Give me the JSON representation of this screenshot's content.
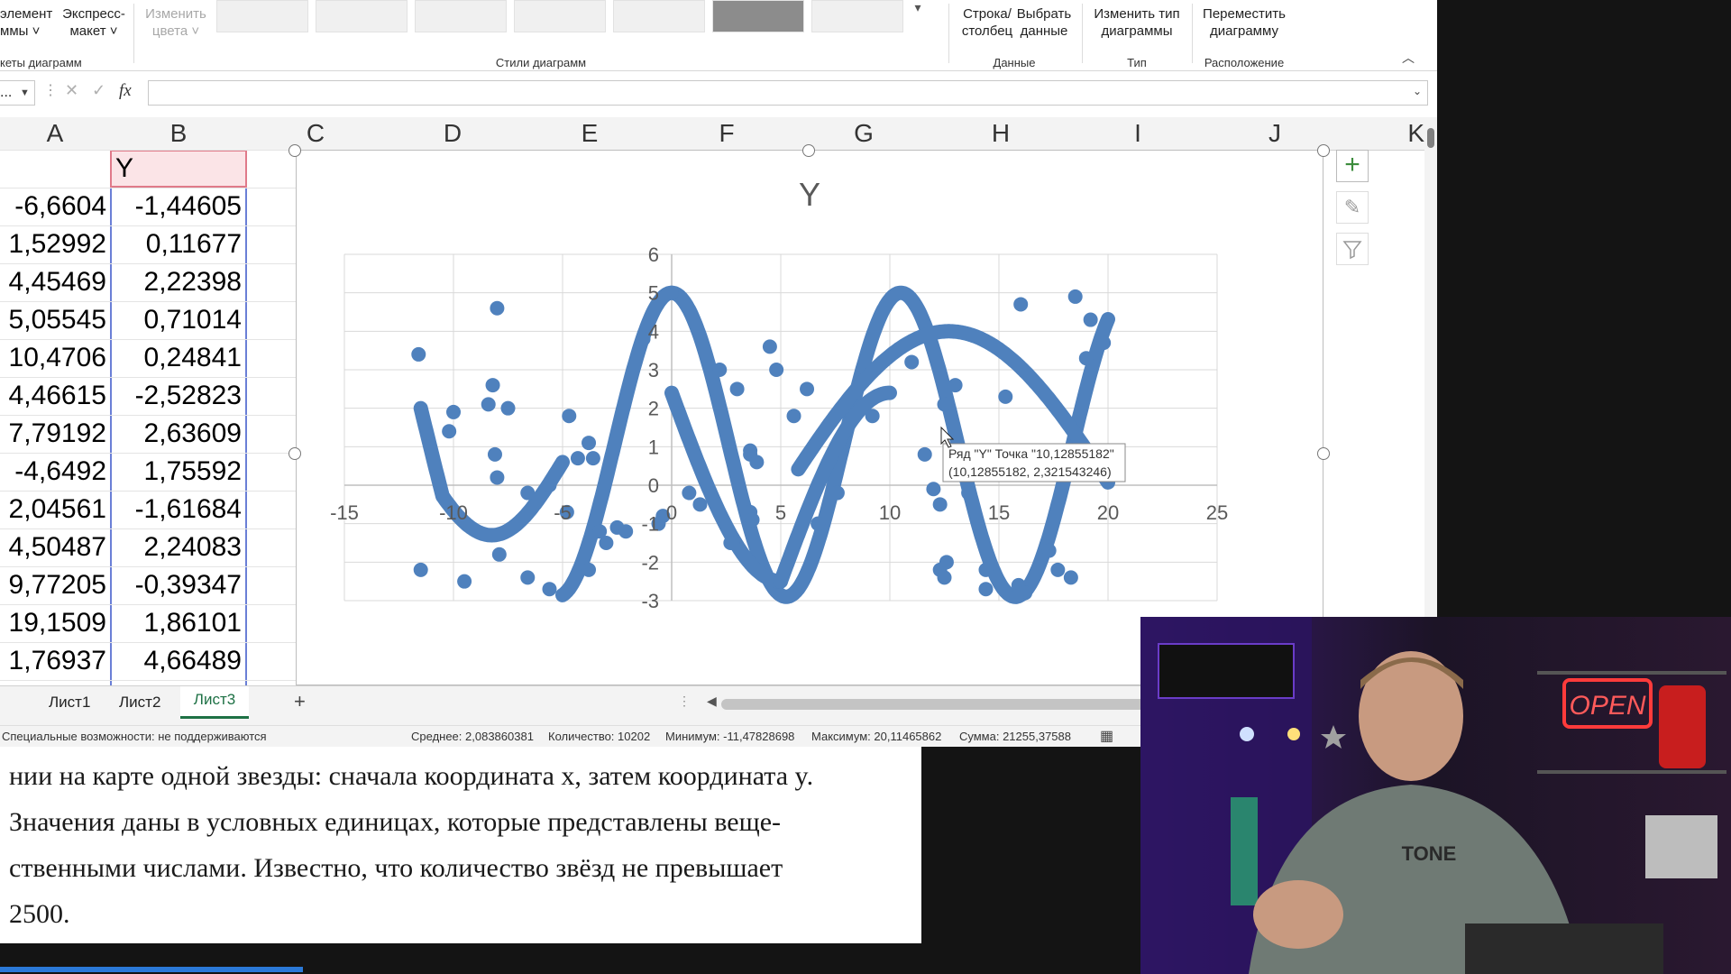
{
  "ribbon": {
    "element_label_1": "элемент",
    "element_label_2": "ммы ˅",
    "express_label_1": "Экспресс-",
    "express_label_2": "макет ˅",
    "change_colors_1": "Изменить",
    "change_colors_2": "цвета ˅",
    "row_col_1": "Строка/",
    "row_col_2": "столбец",
    "select_data_1": "Выбрать",
    "select_data_2": "данные",
    "change_type_1": "Изменить тип",
    "change_type_2": "диаграммы",
    "move_chart_1": "Переместить",
    "move_chart_2": "диаграмму",
    "group_layouts": "кеты диаграмм",
    "group_styles": "Стили диаграмм",
    "group_data": "Данные",
    "group_type": "Тип",
    "group_location": "Расположение"
  },
  "formula_bar": {
    "namebox": "...",
    "fx": "fx",
    "value": ""
  },
  "columns": [
    "A",
    "B",
    "C",
    "D",
    "E",
    "F",
    "G",
    "H",
    "I",
    "J",
    "K"
  ],
  "table": {
    "header_b": "Y",
    "col_a": [
      "-6,6604",
      "1,52992",
      "4,45469",
      "5,05545",
      "10,4706",
      "4,46615",
      "7,79192",
      "-4,6492",
      "2,04561",
      "4,50487",
      "9,77205",
      "19,1509",
      "1,76937"
    ],
    "col_b": [
      "-1,44605",
      "0,11677",
      "2,22398",
      "0,71014",
      "0,24841",
      "-2,52823",
      "2,63609",
      "1,75592",
      "-1,61684",
      "2,24083",
      "-0,39347",
      "1,86101",
      "4,66489"
    ]
  },
  "chart_data": {
    "type": "scatter",
    "title": "Y",
    "series": [
      {
        "name": "Y",
        "color": "#4f81bd",
        "points": [
          [
            -11.6,
            3.4
          ],
          [
            -8,
            4.6
          ],
          [
            -8.2,
            2.6
          ],
          [
            -7.5,
            2.0
          ],
          [
            -8.4,
            2.1
          ],
          [
            -10,
            1.9
          ],
          [
            -10.2,
            1.4
          ],
          [
            -8.1,
            0.8
          ],
          [
            -8.0,
            0.2
          ],
          [
            -6.6,
            -0.2
          ],
          [
            -5.6,
            0.0
          ],
          [
            -4.7,
            1.8
          ],
          [
            -3.8,
            1.1
          ],
          [
            -4.3,
            0.7
          ],
          [
            -3.6,
            0.7
          ],
          [
            -2.5,
            -1.1
          ],
          [
            -2.1,
            -1.2
          ],
          [
            -3.3,
            -1.2
          ],
          [
            -3.0,
            -1.5
          ],
          [
            -3.8,
            -2.2
          ],
          [
            -4.8,
            -0.7
          ],
          [
            -5.6,
            -2.7
          ],
          [
            -6.6,
            -2.4
          ],
          [
            -7.9,
            -1.8
          ],
          [
            -9.5,
            -2.5
          ],
          [
            -11.5,
            -2.2
          ],
          [
            -1.3,
            3.8
          ],
          [
            2.2,
            3.0
          ],
          [
            3.0,
            2.5
          ],
          [
            3.6,
            0.8
          ],
          [
            3.9,
            0.6
          ],
          [
            3.6,
            0.9
          ],
          [
            -0.4,
            -0.8
          ],
          [
            -0.6,
            -1.0
          ],
          [
            0.8,
            -0.2
          ],
          [
            1.3,
            -0.5
          ],
          [
            2.7,
            -1.5
          ],
          [
            2.8,
            -1.5
          ],
          [
            3.6,
            -0.7
          ],
          [
            3.7,
            -0.9
          ],
          [
            4.5,
            3.6
          ],
          [
            4.8,
            3.0
          ],
          [
            5.6,
            1.8
          ],
          [
            6.2,
            2.5
          ],
          [
            6.7,
            -1.0
          ],
          [
            7.6,
            -0.2
          ],
          [
            9.2,
            1.8
          ],
          [
            11.0,
            3.2
          ],
          [
            12.5,
            2.1
          ],
          [
            13.0,
            2.6
          ],
          [
            11.6,
            0.8
          ],
          [
            12.0,
            -0.1
          ],
          [
            12.3,
            -0.5
          ],
          [
            13.6,
            -0.2
          ],
          [
            14.7,
            0.6
          ],
          [
            15.3,
            2.3
          ],
          [
            16.0,
            4.7
          ],
          [
            18.5,
            4.9
          ],
          [
            19.2,
            4.3
          ],
          [
            19.0,
            3.3
          ],
          [
            19.8,
            3.7
          ],
          [
            12.3,
            -2.2
          ],
          [
            12.6,
            -2.0
          ],
          [
            12.5,
            -2.4
          ],
          [
            14.4,
            -2.2
          ],
          [
            14.4,
            -2.7
          ],
          [
            15.9,
            -2.6
          ],
          [
            16.2,
            -2.8
          ],
          [
            17.3,
            -1.7
          ],
          [
            17.7,
            -2.2
          ],
          [
            18.3,
            -2.4
          ],
          [
            15.8,
            -2.9
          ]
        ]
      }
    ],
    "xlim": [
      -15,
      25
    ],
    "ylim": [
      -3,
      6
    ],
    "x_ticks": [
      "-15",
      "-10",
      "-5",
      "0",
      "5",
      "10",
      "15",
      "20",
      "25"
    ],
    "y_ticks": [
      "6",
      "5",
      "4",
      "3",
      "2",
      "1",
      "0",
      "-1",
      "-2",
      "-3"
    ],
    "tooltip_line1": "Ряд \"Y\" Точка \"10,12855182\"",
    "tooltip_line2": "(10,12855182, 2,321543246)"
  },
  "sheets": [
    "Лист1",
    "Лист2",
    "Лист3"
  ],
  "active_sheet": "Лист3",
  "status": {
    "accessibility": "Специальные возможности: не поддерживаются",
    "average": "Среднее: 2,083860381",
    "count": "Количество: 10202",
    "min": "Минимум: -11,47828698",
    "max": "Максимум: 20,11465862",
    "sum": "Сумма: 21255,37588"
  },
  "document": {
    "line1": "нии на карте одной звезды: сначала координата x, затем координата y.",
    "line2": "Значения даны в условных единицах, которые представлены веще-",
    "line3": "ственными числами. Известно, что количество звёзд не превышает",
    "line4": "2500."
  },
  "webcam": {
    "neon_sign": "OPEN",
    "shirt_text": "TONE"
  }
}
